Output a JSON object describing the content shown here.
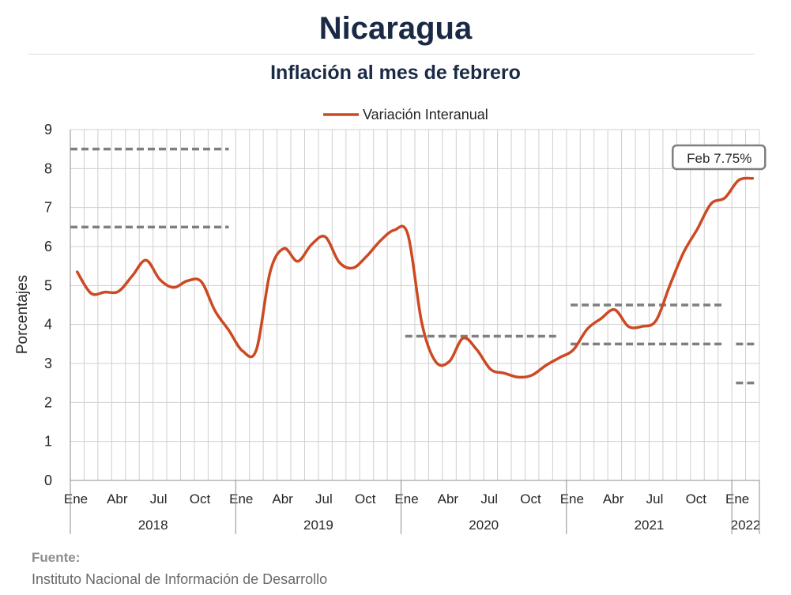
{
  "header": {
    "title": "Nicaragua",
    "subtitle": "Inflación al mes de febrero"
  },
  "source": {
    "label": "Fuente:",
    "text": "Instituto Nacional de Información de  Desarrollo"
  },
  "colors": {
    "series": "#cc4a23",
    "target": "#7f7f7f",
    "grid": "#cfcfcf"
  },
  "chart_data": {
    "type": "line",
    "ylabel": "Porcentajes",
    "ylim": [
      0,
      9
    ],
    "yticks": [
      "0",
      "1",
      "2",
      "3",
      "4",
      "5",
      "6",
      "7",
      "8",
      "9"
    ],
    "legend": {
      "position": "top",
      "entries": [
        "Variación Interanual"
      ]
    },
    "grid": true,
    "month_labels": [
      {
        "index": 0,
        "label": "Ene"
      },
      {
        "index": 3,
        "label": "Abr"
      },
      {
        "index": 6,
        "label": "Jul"
      },
      {
        "index": 9,
        "label": "Oct"
      },
      {
        "index": 12,
        "label": "Ene"
      },
      {
        "index": 15,
        "label": "Abr"
      },
      {
        "index": 18,
        "label": "Jul"
      },
      {
        "index": 21,
        "label": "Oct"
      },
      {
        "index": 24,
        "label": "Ene"
      },
      {
        "index": 27,
        "label": "Abr"
      },
      {
        "index": 30,
        "label": "Jul"
      },
      {
        "index": 33,
        "label": "Oct"
      },
      {
        "index": 36,
        "label": "Ene"
      },
      {
        "index": 39,
        "label": "Abr"
      },
      {
        "index": 42,
        "label": "Jul"
      },
      {
        "index": 45,
        "label": "Oct"
      },
      {
        "index": 48,
        "label": "Ene"
      }
    ],
    "years": [
      {
        "label": "2018",
        "start": 0,
        "end": 12
      },
      {
        "label": "2019",
        "start": 12,
        "end": 24
      },
      {
        "label": "2020",
        "start": 24,
        "end": 36
      },
      {
        "label": "2021",
        "start": 36,
        "end": 48
      },
      {
        "label": "2022",
        "start": 48,
        "end": 50
      }
    ],
    "series": [
      {
        "name": "Variación Interanual",
        "values": [
          5.35,
          4.8,
          4.83,
          4.85,
          5.25,
          5.65,
          5.15,
          4.95,
          5.12,
          5.1,
          4.35,
          3.85,
          3.32,
          3.35,
          5.35,
          5.95,
          5.62,
          6.05,
          6.25,
          5.6,
          5.45,
          5.75,
          6.15,
          6.42,
          6.3,
          4.05,
          3.05,
          3.05,
          3.65,
          3.35,
          2.85,
          2.75,
          2.65,
          2.7,
          2.95,
          3.15,
          3.35,
          3.88,
          4.15,
          4.38,
          3.95,
          3.95,
          4.1,
          5.0,
          5.85,
          6.45,
          7.1,
          7.25,
          7.7,
          7.75
        ]
      }
    ],
    "targets": [
      {
        "start": 0,
        "end": 11.5,
        "value": 8.5
      },
      {
        "start": 0,
        "end": 11.5,
        "value": 6.5
      },
      {
        "start": 24.3,
        "end": 35.5,
        "value": 3.7
      },
      {
        "start": 36.3,
        "end": 47.5,
        "value": 4.5
      },
      {
        "start": 36.3,
        "end": 47.5,
        "value": 3.5
      },
      {
        "start": 48.3,
        "end": 49.8,
        "value": 3.5
      },
      {
        "start": 48.3,
        "end": 49.8,
        "value": 2.5
      }
    ],
    "annotation": {
      "text": "Feb 7.75%",
      "index": 49,
      "value": 7.75
    }
  }
}
